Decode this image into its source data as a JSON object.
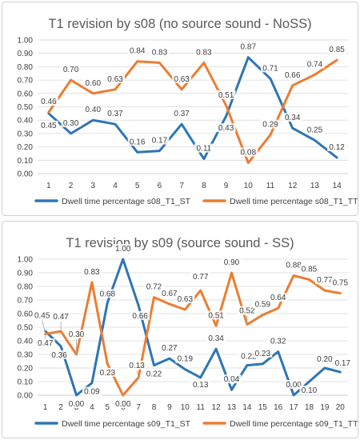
{
  "colors": {
    "st": "#2E75B6",
    "tt": "#ED7D31",
    "grid": "#D9D9D9",
    "axis": "#BFBFBF",
    "leader": "#A6A6A6"
  },
  "chart_data": [
    {
      "type": "line",
      "title": "T1 revision by s08 (no source sound - NoSS)",
      "categories": [
        "1",
        "2",
        "3",
        "4",
        "5",
        "6",
        "7",
        "8",
        "9",
        "10",
        "11",
        "12",
        "13",
        "14"
      ],
      "ylim": [
        0,
        1
      ],
      "yticks": [
        "0.00",
        "0.10",
        "0.20",
        "0.30",
        "0.40",
        "0.50",
        "0.60",
        "0.70",
        "0.80",
        "0.90",
        "1.00"
      ],
      "grid": true,
      "legend_position": "bottom",
      "series": [
        {
          "name": "Dwell time percentage s08_T1_ST",
          "color": "#2E75B6",
          "values": [
            0.45,
            0.3,
            0.4,
            0.37,
            0.16,
            0.17,
            0.37,
            0.11,
            0.43,
            0.87,
            0.71,
            0.34,
            0.25,
            0.12
          ],
          "labels": [
            "0.45",
            "0.30",
            "0.40",
            "0.37",
            "0.16",
            "0.17",
            "0.37",
            "0.11",
            "0.43",
            "0.87",
            "0.71",
            "0.34",
            "0.25",
            "0.12"
          ]
        },
        {
          "name": "Dwell time percentage s08_T1_TT",
          "color": "#ED7D31",
          "values": [
            0.46,
            0.7,
            0.6,
            0.63,
            0.84,
            0.83,
            0.63,
            0.83,
            0.51,
            0.08,
            0.29,
            0.66,
            0.74,
            0.85
          ],
          "labels": [
            "0.46",
            "0.70",
            "0.60",
            "0.63",
            "0.84",
            "0.83",
            "0.63",
            "0.83",
            "0.51",
            "0.08",
            "0.29",
            "0.66",
            "0.74",
            "0.85"
          ]
        }
      ]
    },
    {
      "type": "line",
      "title": "T1 revision by s09 (source sound - SS)",
      "categories": [
        "1",
        "2",
        "3",
        "4",
        "5",
        "6",
        "7",
        "8",
        "9",
        "10",
        "11",
        "12",
        "13",
        "14",
        "15",
        "16",
        "17",
        "18",
        "19",
        "20"
      ],
      "ylim": [
        0,
        1
      ],
      "yticks": [
        "0.00",
        "0.10",
        "0.20",
        "0.30",
        "0.40",
        "0.50",
        "0.60",
        "0.70",
        "0.80",
        "0.90",
        "1.00"
      ],
      "grid": true,
      "legend_position": "bottom",
      "series": [
        {
          "name": "Dwell time percentage s09_T1_ST",
          "color": "#2E75B6",
          "values": [
            0.47,
            0.36,
            0.0,
            0.09,
            0.68,
            1.0,
            0.66,
            0.22,
            0.27,
            0.19,
            0.13,
            0.34,
            0.04,
            0.22,
            0.23,
            0.32,
            0.0,
            0.1,
            0.2,
            0.17
          ],
          "labels": [
            "0.47",
            "0.36",
            "0.00",
            "0.09",
            "0.68",
            "1.00",
            "0.66",
            "0.22",
            "0.27",
            "0.19",
            "0.13",
            "0.34",
            "0.04",
            "0.22",
            "0.23",
            "0.32",
            "0.00",
            "0.10",
            "0.20",
            "0.17"
          ]
        },
        {
          "name": "Dwell time percentage s09_T1_TT",
          "color": "#ED7D31",
          "values": [
            0.45,
            0.47,
            0.3,
            0.83,
            0.23,
            0.0,
            0.13,
            0.72,
            0.67,
            0.63,
            0.77,
            0.51,
            0.9,
            0.52,
            0.59,
            0.64,
            0.88,
            0.85,
            0.77,
            0.75
          ],
          "labels": [
            "0.45",
            "0.47",
            "0.30",
            "0.83",
            "0.23",
            "0.00",
            "0.13",
            "0.72",
            "0.67",
            "0.63",
            "0.77",
            "0.51",
            "0.90",
            "0.52",
            "0.59",
            "0.64",
            "0.88",
            "0.85",
            "0.77",
            "0.75"
          ]
        }
      ]
    }
  ]
}
